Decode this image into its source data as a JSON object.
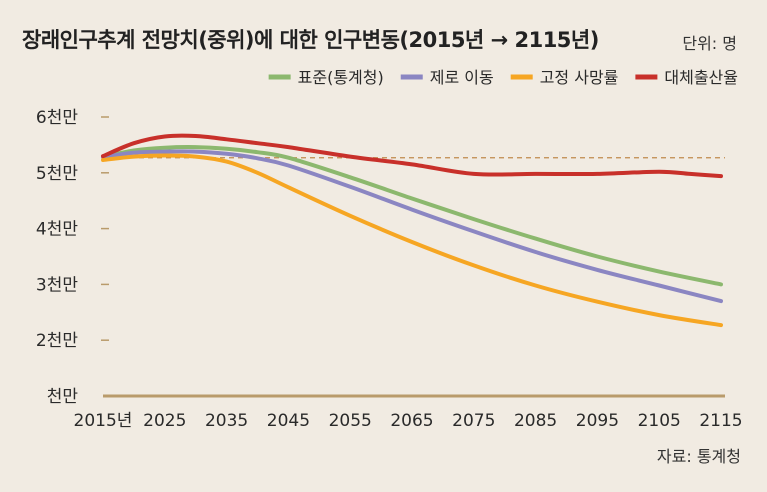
{
  "title": "장래인구추계 전망치(중위)에 대한 인구변동(2015년 → 2115년)",
  "unit_label": "단위: 명",
  "source_label": "자료: 통계청",
  "colors": {
    "background": "#f1ebe2",
    "baseline": "#b99b6b",
    "reference_line": "#c08a4c"
  },
  "chart_data": {
    "type": "line",
    "x_tick_labels": [
      "2015년",
      "2025",
      "2035",
      "2045",
      "2055",
      "2065",
      "2075",
      "2085",
      "2095",
      "2105",
      "2115"
    ],
    "x_ticks": [
      2015,
      2025,
      2035,
      2045,
      2055,
      2065,
      2075,
      2085,
      2095,
      2105,
      2115
    ],
    "xlim": [
      2015,
      2115
    ],
    "y_ticks": [
      10000000,
      20000000,
      30000000,
      40000000,
      50000000,
      60000000
    ],
    "y_tick_labels": [
      "천만",
      "2천만",
      "3천만",
      "4천만",
      "5천만",
      "6천만"
    ],
    "ylim": [
      10000000,
      60000000
    ],
    "reference_line": {
      "y": 52700000,
      "style": "dashed"
    },
    "legend_position": "top-right",
    "series": [
      {
        "name": "표준(통계청)",
        "color": "#8cb86e",
        "x": [
          2015,
          2020,
          2025,
          2030,
          2035,
          2040,
          2045,
          2055,
          2065,
          2075,
          2085,
          2095,
          2105,
          2115
        ],
        "values": [
          52900000,
          54000000,
          54500000,
          54600000,
          54300000,
          53700000,
          52700000,
          49200000,
          45400000,
          41700000,
          38200000,
          35000000,
          32300000,
          30000000
        ]
      },
      {
        "name": "제로 이동",
        "color": "#8b86c2",
        "x": [
          2015,
          2020,
          2025,
          2030,
          2035,
          2040,
          2045,
          2055,
          2065,
          2075,
          2085,
          2095,
          2105,
          2115
        ],
        "values": [
          52800000,
          53600000,
          53800000,
          53800000,
          53400000,
          52600000,
          51300000,
          47500000,
          43400000,
          39500000,
          35800000,
          32600000,
          29800000,
          27000000
        ]
      },
      {
        "name": "고정 사망률",
        "color": "#f6a623",
        "x": [
          2015,
          2020,
          2025,
          2030,
          2035,
          2040,
          2045,
          2055,
          2065,
          2075,
          2085,
          2095,
          2105,
          2115
        ],
        "values": [
          52300000,
          52900000,
          53100000,
          52900000,
          52000000,
          50000000,
          47400000,
          42300000,
          37600000,
          33400000,
          29800000,
          26900000,
          24500000,
          22700000
        ]
      },
      {
        "name": "대체출산율",
        "color": "#c8302a",
        "x": [
          2015,
          2020,
          2025,
          2030,
          2035,
          2040,
          2045,
          2055,
          2065,
          2075,
          2085,
          2095,
          2105,
          2110,
          2115
        ],
        "values": [
          53000000,
          55300000,
          56500000,
          56600000,
          56000000,
          55300000,
          54600000,
          52900000,
          51500000,
          49800000,
          49800000,
          49800000,
          50200000,
          49800000,
          49400000
        ]
      }
    ]
  }
}
